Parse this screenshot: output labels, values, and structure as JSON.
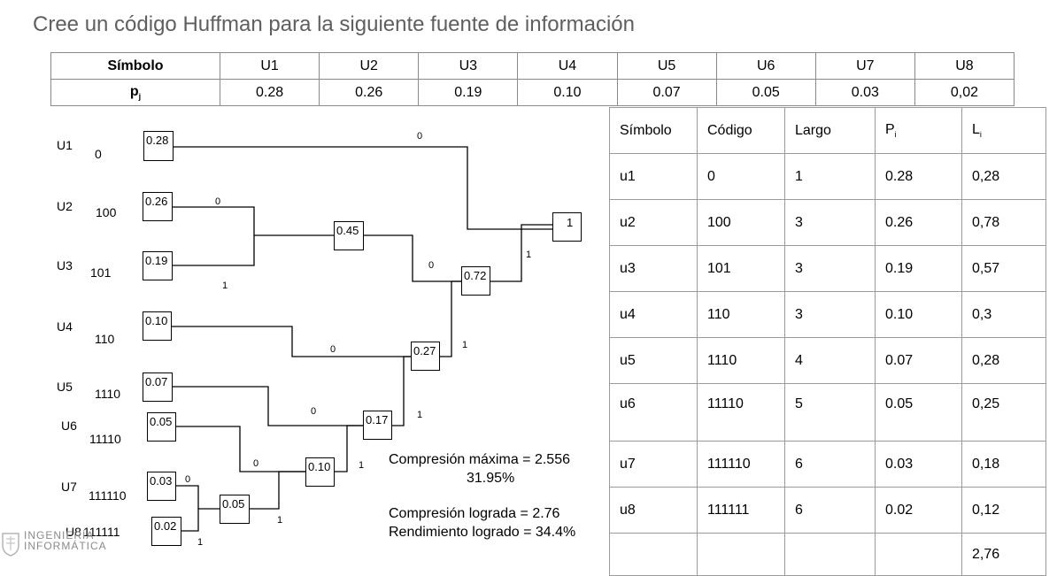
{
  "title": "Cree un código Huffman para la siguiente fuente de información",
  "source_table": {
    "header_label": "Símbolo",
    "prob_label": "p",
    "prob_sub": "j",
    "symbols": [
      "U1",
      "U2",
      "U3",
      "U4",
      "U5",
      "U6",
      "U7",
      "U8"
    ],
    "probs": [
      "0.28",
      "0.26",
      "0.19",
      "0.10",
      "0.07",
      "0.05",
      "0.03",
      "0,02"
    ]
  },
  "tree": {
    "symbols": [
      {
        "name": "U1",
        "code": "0",
        "prob": "0.28"
      },
      {
        "name": "U2",
        "code": "100",
        "prob": "0.26"
      },
      {
        "name": "U3",
        "code": "101",
        "prob": "0.19"
      },
      {
        "name": "U4",
        "code": "110",
        "prob": "0.10"
      },
      {
        "name": "U5",
        "code": "1110",
        "prob": "0.07"
      },
      {
        "name": "U6",
        "code": "11110",
        "prob": "0.05"
      },
      {
        "name": "U7",
        "code": "111110",
        "prob": "0.03"
      },
      {
        "name": "U8",
        "code": "111111",
        "prob": "0.02"
      }
    ],
    "internal_nodes": {
      "n005": "0.05",
      "n010": "0.10",
      "n017": "0.17",
      "n027": "0.27",
      "n045": "0.45",
      "n072": "0.72",
      "root": "1"
    }
  },
  "info": {
    "compresion_maxima": "Compresión máxima = 2.556",
    "compresion_maxima_pct": "31.95%",
    "compresion_lograda": "Compresión lograda = 2.76",
    "rendimiento": "Rendimiento logrado = 34.4%"
  },
  "code_table": {
    "headers": {
      "symbol": "Símbolo",
      "code": "Código",
      "length": "Largo",
      "p": "P",
      "p_sub": "i",
      "l": "L",
      "l_sub": "i"
    },
    "rows": [
      {
        "symbol": "u1",
        "code": "0",
        "length": "1",
        "p": "0.28",
        "l": "0,28"
      },
      {
        "symbol": "u2",
        "code": "100",
        "length": "3",
        "p": "0.26",
        "l": "0,78"
      },
      {
        "symbol": "u3",
        "code": "101",
        "length": "3",
        "p": "0.19",
        "l": "0,57"
      },
      {
        "symbol": "u4",
        "code": "110",
        "length": "3",
        "p": "0.10",
        "l": "0,3"
      },
      {
        "symbol": "u5",
        "code": "1110",
        "length": "4",
        "p": "0.07",
        "l": "0,28"
      },
      {
        "symbol": "u6",
        "code": "11110",
        "length": "5",
        "p": "0.05",
        "l": "0,25"
      },
      {
        "symbol": "u7",
        "code": "111110",
        "length": "6",
        "p": "0.03",
        "l": "0,18"
      },
      {
        "symbol": "u8",
        "code": "111111",
        "length": "6",
        "p": "0.02",
        "l": "0,12"
      }
    ],
    "total": "2,76"
  },
  "logo": {
    "line1": "INGENIERÍA",
    "line2": "INFORMÁTICA"
  }
}
